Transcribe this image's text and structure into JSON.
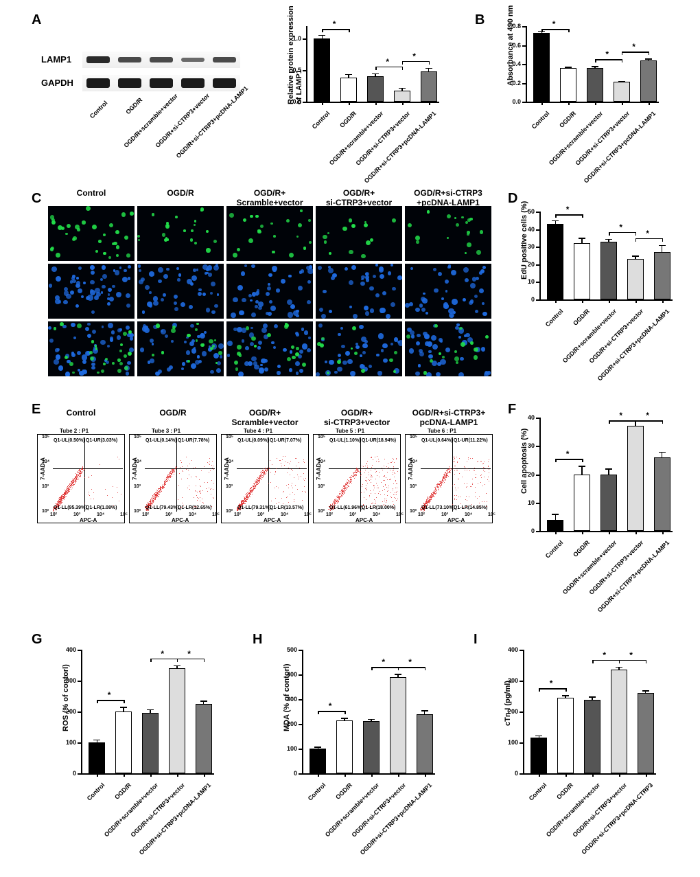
{
  "letters": {
    "A": "A",
    "B": "B",
    "C": "C",
    "D": "D",
    "E": "E",
    "F": "F",
    "G": "G",
    "H": "H",
    "I": "I"
  },
  "conditions": [
    "Control",
    "OGD/R",
    "OGD/R+scramble+vector",
    "OGD/R+si-CTRP3+vector",
    "OGD/R+si-CTRP3+pcDNA-LAMP1"
  ],
  "conditions_I": [
    "Control",
    "OGD/R",
    "OGD/R+scramble+vector",
    "OGD/R+si-CTRP3+vector",
    "OGD/R+si-CTRP3+pcDNA-CTRP3"
  ],
  "wb": {
    "labels": [
      "LAMP1",
      "GAPDH"
    ],
    "lanes": [
      "Control",
      "OGD/R",
      "OGD/R+scramble+vector",
      "OGD/R+si-CTRP3+vector",
      "OGD/R+si-CTRP3+pcDNA-LAMP1"
    ]
  },
  "colors": {
    "bar_palette": [
      "#000000",
      "#ffffff",
      "#555555",
      "#dddddd",
      "#777777"
    ],
    "bg": "#ffffff",
    "axis": "#000000",
    "green": "#22e04a",
    "blue": "#1e6adf",
    "fc_red": "#d22"
  },
  "chartA": {
    "ylabel": "Relative  protein expression\nof LAMP1",
    "ylim": [
      0,
      1.2
    ],
    "ytick_step": 0.5,
    "values": [
      1.0,
      0.38,
      0.4,
      0.17,
      0.48
    ],
    "errors": [
      0.06,
      0.06,
      0.05,
      0.05,
      0.06
    ],
    "sig": [
      [
        0,
        1
      ],
      [
        2,
        3
      ],
      [
        3,
        4
      ]
    ]
  },
  "chartB": {
    "ylabel": "Absorbance at 490 nm",
    "ylim": [
      0,
      0.8
    ],
    "ytick_step": 0.2,
    "values": [
      0.73,
      0.36,
      0.36,
      0.21,
      0.44
    ],
    "errors": [
      0.02,
      0.01,
      0.015,
      0.01,
      0.015
    ],
    "sig": [
      [
        0,
        1
      ],
      [
        2,
        3
      ],
      [
        3,
        4
      ]
    ]
  },
  "chartD": {
    "ylabel": "EdU positive cells (%)",
    "ylim": [
      0,
      50
    ],
    "ytick_step": 10,
    "values": [
      43,
      32,
      33,
      23,
      27
    ],
    "errors": [
      2,
      3,
      1.5,
      2,
      4
    ],
    "sig": [
      [
        0,
        1
      ],
      [
        2,
        3
      ],
      [
        3,
        4
      ]
    ]
  },
  "chartF": {
    "ylabel": "Cell apoptosis (%)",
    "ylim": [
      0,
      40
    ],
    "ytick_step": 10,
    "values": [
      4,
      20,
      20,
      37,
      26
    ],
    "errors": [
      2,
      3,
      2,
      2,
      2
    ],
    "sig": [
      [
        0,
        1
      ],
      [
        2,
        3
      ],
      [
        3,
        4
      ]
    ]
  },
  "chartG": {
    "ylabel": "ROS (% of contorl)",
    "ylim": [
      0,
      400
    ],
    "ytick_step": 100,
    "values": [
      100,
      200,
      195,
      340,
      225
    ],
    "errors": [
      10,
      15,
      12,
      10,
      10
    ],
    "sig": [
      [
        0,
        1
      ],
      [
        2,
        3
      ],
      [
        3,
        4
      ]
    ]
  },
  "chartH": {
    "ylabel": "MDA (% of contorl)",
    "ylim": [
      0,
      500
    ],
    "ytick_step": 100,
    "values": [
      100,
      215,
      210,
      390,
      240
    ],
    "errors": [
      8,
      10,
      10,
      12,
      15
    ],
    "sig": [
      [
        0,
        1
      ],
      [
        2,
        3
      ],
      [
        3,
        4
      ]
    ]
  },
  "chartI": {
    "ylabel": "cTn-I (pg/ml)",
    "ylim": [
      0,
      400
    ],
    "ytick_step": 100,
    "values": [
      115,
      245,
      238,
      335,
      260
    ],
    "errors": [
      8,
      8,
      10,
      10,
      8
    ],
    "sig": [
      [
        0,
        1
      ],
      [
        2,
        3
      ],
      [
        3,
        4
      ]
    ]
  },
  "edu_titles": [
    "Control",
    "OGD/R",
    "OGD/R+\nScramble+vector",
    "OGD/R+\nsi-CTRP3+vector",
    "OGD/R+si-CTRP3\n+pcDNA-LAMP1"
  ],
  "flow": {
    "titles": [
      "Control",
      "OGD/R",
      "OGD/R+\nScramble+vector",
      "OGD/R+\nsi-CTRP3+vector",
      "OGD/R+si-CTRP3+\npcDNA-LAMP1"
    ],
    "tube_labels": [
      "Tube 2 : P1",
      "Tube 3 : P1",
      "Tube 4 : P1",
      "Tube 5 : P1",
      "Tube 6 : P1"
    ],
    "quadrants": [
      {
        "UL": "Q1-UL(0.50%)",
        "UR": "Q1-UR(3.03%)",
        "LL": "Q1-LL(95.39%)",
        "LR": "Q1-LR(1.08%)"
      },
      {
        "UL": "Q1-UL(0.14%)",
        "UR": "Q1-UR(7.78%)",
        "LL": "Q1-LL(79.43%)",
        "LR": "Q1-LR(12.65%)"
      },
      {
        "UL": "Q1-UL(0.09%)",
        "UR": "Q1-UR(7.07%)",
        "LL": "Q1-LL(79.31%)",
        "LR": "Q1-LR(13.57%)"
      },
      {
        "UL": "Q1-UL(1.10%)",
        "UR": "Q1-UR(18.94%)",
        "LL": "Q1-LL(61.96%)",
        "LR": "Q1-LR(18.00%)"
      },
      {
        "UL": "Q1-UL(0.64%)",
        "UR": "Q1-UR(11.22%)",
        "LL": "Q1-LL(73.10%)",
        "LR": "Q1-LR(14.85%)"
      }
    ],
    "xaxis": "APC-A",
    "yaxis": "7-AAD-A",
    "ticks": [
      "10²",
      "10³",
      "10⁴",
      "10⁵"
    ]
  }
}
